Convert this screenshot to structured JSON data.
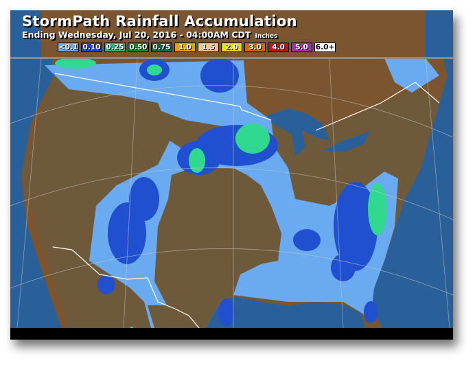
{
  "header": {
    "title": "StormPath Rainfall Accumulation",
    "subtitle": "Ending Wednesday, Jul 20, 2016 - 04:00AM CDT",
    "units": "Inches"
  },
  "legend": [
    {
      "label": "<0.1",
      "color": "#6aaaf0"
    },
    {
      "label": "0.10",
      "color": "#1f45c8"
    },
    {
      "label": "0.25",
      "color": "#2bb37a"
    },
    {
      "label": "0.50",
      "color": "#0e8a2c"
    },
    {
      "label": "0.75",
      "color": "#0d6b3c"
    },
    {
      "label": "1.0",
      "color": "#e6a400"
    },
    {
      "label": "1.5",
      "color": "#f8c08e"
    },
    {
      "label": "2.0",
      "color": "#e4e000"
    },
    {
      "label": "3.0",
      "color": "#e06010"
    },
    {
      "label": "4.0",
      "color": "#c01515"
    },
    {
      "label": "5.0",
      "color": "#a232b0"
    },
    {
      "label": "6.0+",
      "color": "#ffffff"
    }
  ],
  "colors": {
    "ocean": "#2a6099",
    "land_us": "#6e5a3a",
    "land_canada": "#7a5530",
    "rain_light": "#6aaaf0",
    "rain_blue": "#2050d0",
    "rain_green": "#30d890"
  }
}
